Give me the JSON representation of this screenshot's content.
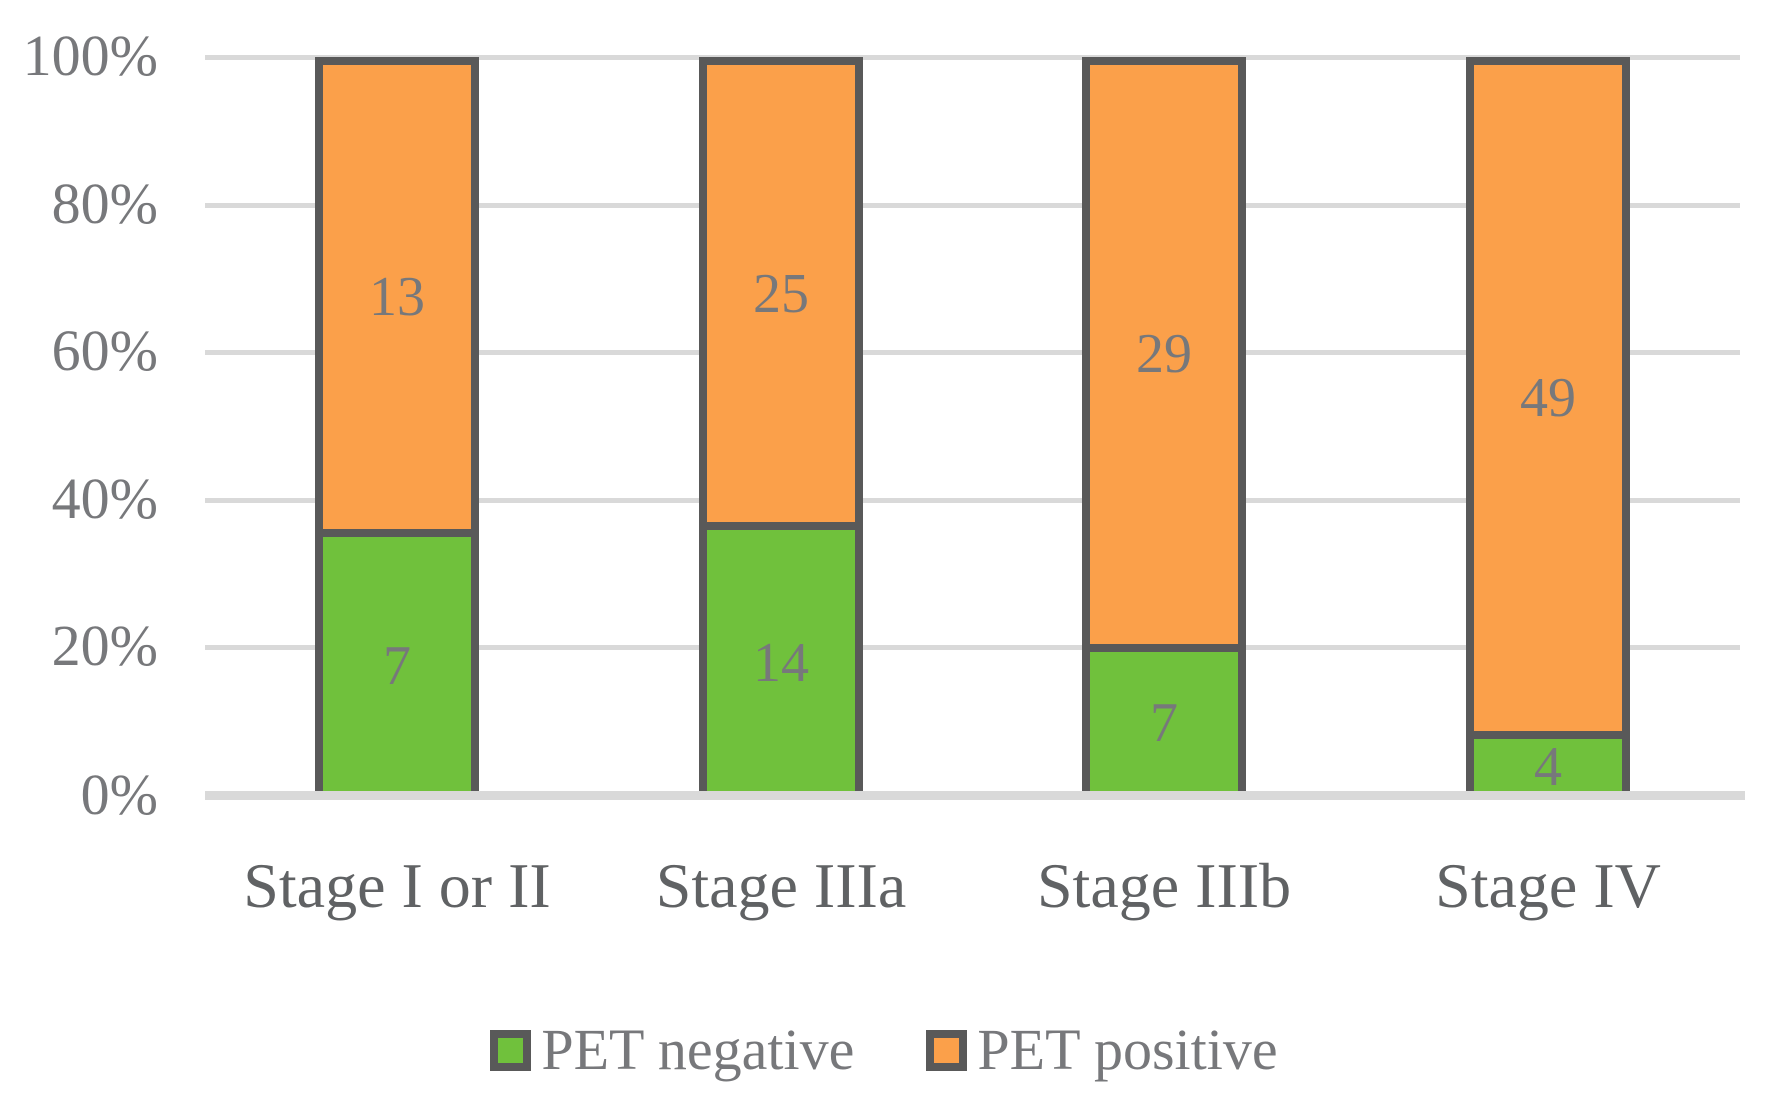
{
  "chart_data": {
    "type": "bar",
    "subtype": "stacked-100-percent",
    "title": "",
    "xlabel": "",
    "ylabel": "",
    "categories": [
      "Stage I or II",
      "Stage IIIa",
      "Stage IIIb",
      "Stage IV"
    ],
    "series": [
      {
        "name": "PET negative",
        "color": "#70C13C",
        "values": [
          7,
          14,
          7,
          4
        ]
      },
      {
        "name": "PET positive",
        "color": "#FBA04A",
        "values": [
          13,
          25,
          29,
          49
        ]
      }
    ],
    "segment_percent_of_column": {
      "PET negative": [
        35.0,
        35.9,
        19.4,
        7.5
      ],
      "PET positive": [
        65.0,
        64.1,
        80.6,
        92.5
      ]
    },
    "y_axis": {
      "min": 0,
      "max": 100,
      "unit": "percent",
      "ticks": [
        "0%",
        "20%",
        "40%",
        "60%",
        "80%",
        "100%"
      ]
    },
    "grid": true,
    "legend_position": "bottom",
    "colors": {
      "bar_border": "#595959",
      "gridline": "#D9D9D9",
      "axis_line": "#D9D9D9",
      "data_label": "#77787B",
      "axis_label": "#77787B",
      "category_label": "#606264",
      "legend_label": "#77787B",
      "background": "#FFFFFF"
    }
  }
}
